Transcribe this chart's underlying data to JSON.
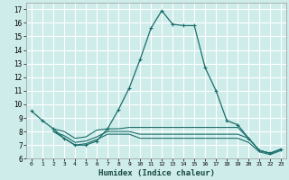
{
  "xlabel": "Humidex (Indice chaleur)",
  "bg_color": "#ceecea",
  "grid_color": "#ffffff",
  "line_color": "#1a6e6a",
  "ylim": [
    6,
    17.5
  ],
  "xlim": [
    -0.5,
    23.5
  ],
  "yticks": [
    6,
    7,
    8,
    9,
    10,
    11,
    12,
    13,
    14,
    15,
    16,
    17
  ],
  "xticks": [
    0,
    1,
    2,
    3,
    4,
    5,
    6,
    7,
    8,
    9,
    10,
    11,
    12,
    13,
    14,
    15,
    16,
    17,
    18,
    19,
    20,
    21,
    22,
    23
  ],
  "line1_x": [
    0,
    1,
    2,
    3,
    4,
    5,
    6,
    7,
    8,
    9,
    10,
    11,
    12,
    13,
    14,
    15,
    16,
    17,
    18,
    19,
    20,
    21,
    22,
    23
  ],
  "line1_y": [
    9.5,
    8.8,
    8.2,
    7.5,
    7.0,
    7.0,
    7.3,
    8.2,
    9.6,
    11.2,
    13.3,
    15.6,
    16.9,
    15.9,
    15.8,
    15.8,
    12.7,
    11.0,
    8.8,
    8.5,
    7.5,
    6.6,
    6.4,
    6.7
  ],
  "line2_x": [
    2,
    3,
    4,
    5,
    6,
    7,
    8,
    9,
    10,
    11,
    12,
    13,
    14,
    15,
    16,
    17,
    18,
    19,
    20,
    21,
    22,
    23
  ],
  "line2_y": [
    8.2,
    8.0,
    7.5,
    7.6,
    8.1,
    8.2,
    8.2,
    8.3,
    8.3,
    8.3,
    8.3,
    8.3,
    8.3,
    8.3,
    8.3,
    8.3,
    8.3,
    8.3,
    7.5,
    6.6,
    6.4,
    6.7
  ],
  "line3_x": [
    2,
    3,
    4,
    5,
    6,
    7,
    8,
    9,
    10,
    11,
    12,
    13,
    14,
    15,
    16,
    17,
    18,
    19,
    20,
    21,
    22,
    23
  ],
  "line3_y": [
    8.0,
    7.7,
    7.2,
    7.3,
    7.6,
    8.0,
    8.0,
    8.0,
    7.8,
    7.8,
    7.8,
    7.8,
    7.8,
    7.8,
    7.8,
    7.8,
    7.8,
    7.8,
    7.5,
    6.6,
    6.4,
    6.7
  ],
  "line4_x": [
    2,
    3,
    4,
    5,
    6,
    7,
    8,
    9,
    10,
    11,
    12,
    13,
    14,
    15,
    16,
    17,
    18,
    19,
    20,
    21,
    22,
    23
  ],
  "line4_y": [
    8.0,
    7.5,
    7.0,
    7.1,
    7.4,
    7.8,
    7.8,
    7.8,
    7.5,
    7.5,
    7.5,
    7.5,
    7.5,
    7.5,
    7.5,
    7.5,
    7.5,
    7.5,
    7.2,
    6.5,
    6.3,
    6.6
  ]
}
